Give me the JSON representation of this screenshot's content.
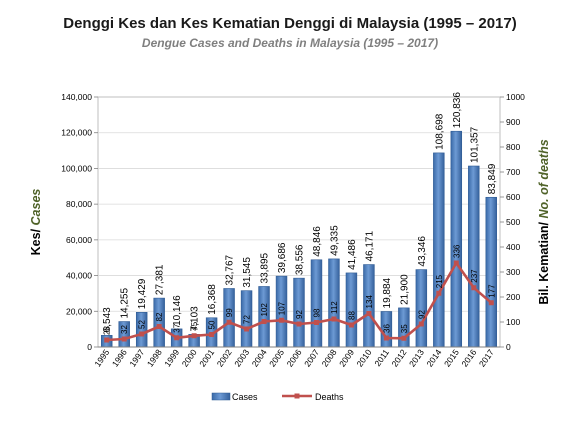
{
  "title": "Denggi Kes dan Kes Kematian Denggi di Malaysia (1995 – 2017)",
  "subtitle": "Dengue Cases and Deaths in Malaysia (1995 – 2017)",
  "colors": {
    "bar": "#4f81bd",
    "line": "#c0504d",
    "plot_bg": "#ffffff",
    "ylabel_left_part2": "#4f6228",
    "ylabel_right_part2": "#4f6228"
  },
  "chart_data": {
    "type": "bar",
    "categories": [
      "1995",
      "1996",
      "1997",
      "1998",
      "1999",
      "2000",
      "2001",
      "2002",
      "2003",
      "2004",
      "2005",
      "2006",
      "2007",
      "2008",
      "2009",
      "2010",
      "2011",
      "2012",
      "2013",
      "2014",
      "2015",
      "2016",
      "2017"
    ],
    "series": [
      {
        "name": "Cases",
        "type": "bar",
        "axis": "left",
        "values": [
          6543,
          14255,
          19429,
          27381,
          10146,
          7103,
          16368,
          32767,
          31545,
          33895,
          39686,
          38556,
          48846,
          49335,
          41486,
          46171,
          19884,
          21900,
          43346,
          108698,
          120836,
          101357,
          83849
        ],
        "labels": [
          "6,543",
          "14,255",
          "19,429",
          "27,381",
          "10,146",
          "7,103",
          "16,368",
          "32,767",
          "31,545",
          "33,895",
          "39,686",
          "38,556",
          "48,846",
          "49,335",
          "41,486",
          "46,171",
          "19,884",
          "21,900",
          "43,346",
          "108,698",
          "120,836",
          "101,357",
          "83,849"
        ]
      },
      {
        "name": "Deaths",
        "type": "line",
        "axis": "right",
        "values": [
          28,
          32,
          52,
          82,
          37,
          45,
          50,
          99,
          72,
          102,
          107,
          92,
          98,
          112,
          88,
          134,
          36,
          35,
          92,
          215,
          336,
          237,
          177
        ],
        "labels": [
          "28",
          "32",
          "52",
          "82",
          "37",
          "45",
          "50",
          "99",
          "72",
          "102",
          "107",
          "92",
          "98",
          "112",
          "88",
          "134",
          "36",
          "35",
          "92",
          "215",
          "336",
          "237",
          "177"
        ]
      }
    ],
    "y_left": {
      "range": [
        0,
        140000
      ],
      "ticks": [
        "0",
        "20,000",
        "40,000",
        "60,000",
        "80,000",
        "100,000",
        "120,000",
        "140,000"
      ],
      "label_part1": "Kes/ ",
      "label_part2": "Cases"
    },
    "y_right": {
      "range": [
        0,
        1000
      ],
      "ticks": [
        "0",
        "100",
        "200",
        "300",
        "400",
        "500",
        "600",
        "700",
        "800",
        "900",
        "1000"
      ],
      "label_part1": "Bil. Kematian/ ",
      "label_part2": "No. of deaths"
    },
    "grid": true,
    "legend": {
      "placement": "bottom",
      "items": [
        "Cases",
        "Deaths"
      ]
    }
  }
}
